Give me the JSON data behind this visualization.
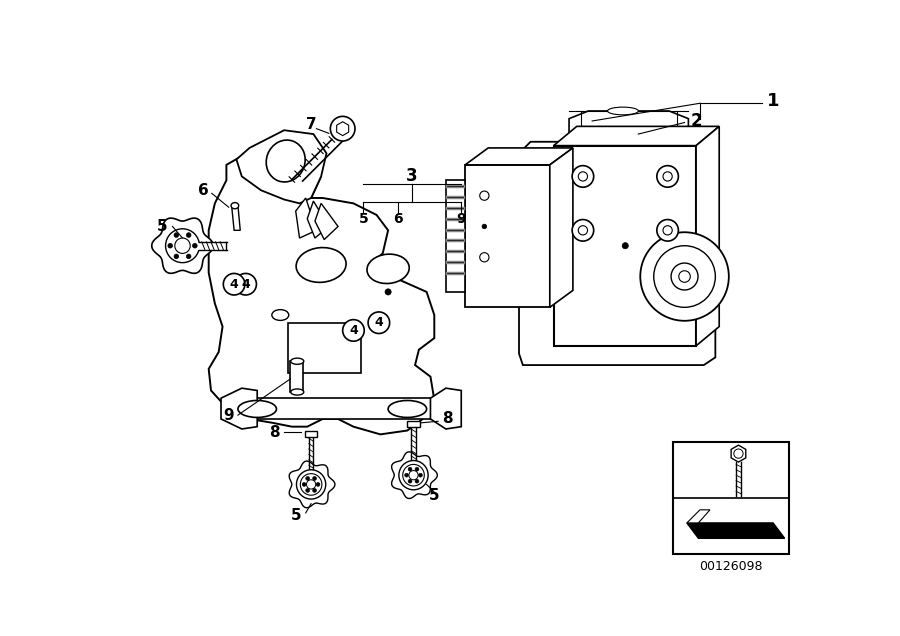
{
  "bg_color": "#ffffff",
  "doc_number": "00126098",
  "line_color": "#000000",
  "gray_line": "#555555"
}
